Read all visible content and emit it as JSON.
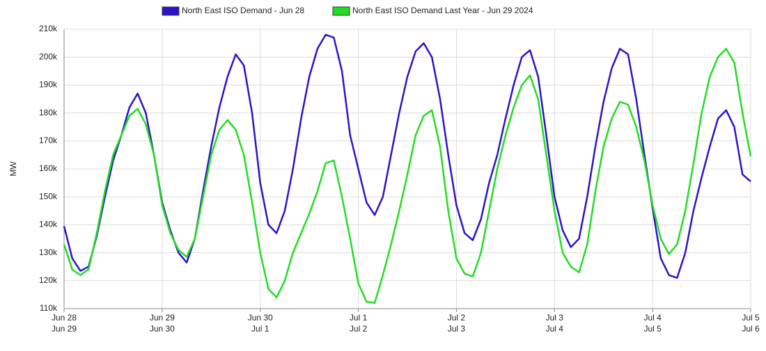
{
  "chart_data": {
    "type": "line",
    "y_label": "MW",
    "x": [
      0,
      2,
      4,
      6,
      8,
      10,
      12,
      14,
      16,
      18,
      20,
      22,
      24,
      26,
      28,
      30,
      32,
      34,
      36,
      38,
      40,
      42,
      44,
      46,
      48,
      50,
      52,
      54,
      56,
      58,
      60,
      62,
      64,
      66,
      68,
      70,
      72,
      74,
      76,
      78,
      80,
      82,
      84,
      86,
      88,
      90,
      92,
      94,
      96,
      98,
      100,
      102,
      104,
      106,
      108,
      110,
      112,
      114,
      116,
      118,
      120,
      122,
      124,
      126,
      128,
      130,
      132,
      134,
      136,
      138,
      140,
      142,
      144,
      146,
      148,
      150,
      152,
      154,
      156,
      158,
      160,
      162,
      164,
      166,
      168
    ],
    "xlim": [
      0,
      168
    ],
    "xticks": [
      {
        "value": 0,
        "label": "Jun 28"
      },
      {
        "value": 24,
        "label": "Jun 29"
      },
      {
        "value": 48,
        "label": "Jun 30"
      },
      {
        "value": 72,
        "label": "Jul 1"
      },
      {
        "value": 96,
        "label": "Jul 2"
      },
      {
        "value": 120,
        "label": "Jul 3"
      },
      {
        "value": 144,
        "label": "Jul 4"
      },
      {
        "value": 168,
        "label": "Jul 5"
      }
    ],
    "xtick_labels_last_year": [
      "Jun 29",
      "Jun 30",
      "Jul 1",
      "Jul 2",
      "Jul 3",
      "Jul 4",
      "Jul 5",
      "Jul 6"
    ],
    "ylim": [
      110000,
      210000
    ],
    "yticks": [
      {
        "value": 110000,
        "label": "110k"
      },
      {
        "value": 120000,
        "label": "120k"
      },
      {
        "value": 130000,
        "label": "130k"
      },
      {
        "value": 140000,
        "label": "140k"
      },
      {
        "value": 150000,
        "label": "150k"
      },
      {
        "value": 160000,
        "label": "160k"
      },
      {
        "value": 170000,
        "label": "170k"
      },
      {
        "value": 180000,
        "label": "180k"
      },
      {
        "value": 190000,
        "label": "190k"
      },
      {
        "value": 200000,
        "label": "200k"
      },
      {
        "value": 210000,
        "label": "210k"
      }
    ],
    "grid": true,
    "legend": "top",
    "series": [
      {
        "name": "North East ISO Demand - Jun 28",
        "color": "#2a14c8",
        "values": [
          139500,
          128000,
          123500,
          125000,
          136000,
          150000,
          163000,
          172000,
          182000,
          187000,
          180000,
          165000,
          148000,
          138000,
          130000,
          126500,
          135000,
          152000,
          168000,
          182000,
          193000,
          201000,
          197000,
          180000,
          155000,
          140000,
          137000,
          145000,
          160000,
          178000,
          193000,
          203000,
          208000,
          207000,
          195000,
          172000,
          160000,
          148000,
          143500,
          150000,
          165000,
          180000,
          193000,
          202000,
          205000,
          200000,
          185000,
          165000,
          147000,
          137000,
          134500,
          142000,
          155000,
          165000,
          178000,
          190000,
          200000,
          202500,
          193000,
          172000,
          150000,
          138000,
          132000,
          135000,
          150000,
          168000,
          184000,
          196000,
          203000,
          201000,
          185000,
          165000,
          146000,
          128000,
          122000,
          121000,
          130000,
          145000,
          157000,
          168000,
          178000,
          181000,
          175000,
          158000,
          155500
        ]
      },
      {
        "name": "North East ISO Demand Last Year - Jun 29 2024",
        "color": "#22dd22",
        "values": [
          133000,
          124000,
          122000,
          124000,
          137000,
          152000,
          165000,
          172000,
          179000,
          181500,
          176000,
          165000,
          147000,
          137000,
          131000,
          128500,
          135000,
          150000,
          165000,
          174000,
          177500,
          174000,
          165000,
          148000,
          130000,
          117000,
          114000,
          120000,
          130000,
          137000,
          144000,
          152000,
          162000,
          163000,
          150000,
          135000,
          119000,
          112500,
          112000,
          122000,
          133000,
          145000,
          158000,
          172000,
          179000,
          181000,
          168000,
          145000,
          128000,
          122500,
          121500,
          130000,
          145000,
          160000,
          172000,
          182000,
          190000,
          193500,
          185000,
          165000,
          145000,
          130000,
          125000,
          123000,
          133000,
          152000,
          168000,
          178000,
          184000,
          183000,
          175000,
          163000,
          147000,
          135000,
          129500,
          133000,
          145000,
          162000,
          180000,
          193000,
          200000,
          203000,
          198000,
          180000,
          164500
        ]
      }
    ]
  }
}
